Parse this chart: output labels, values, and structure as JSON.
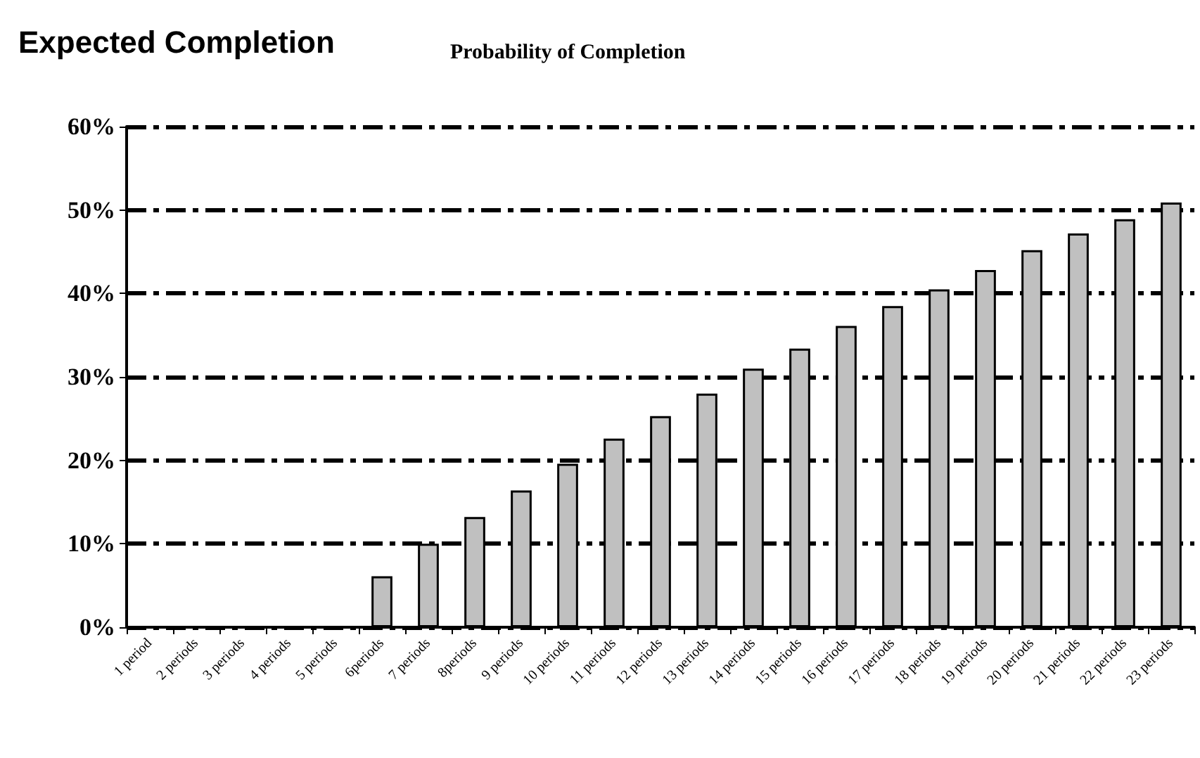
{
  "chart_data": {
    "type": "bar",
    "title": "Expected Completion",
    "subtitle": "Probability of Completion",
    "categories": [
      "1 period",
      "2 periods",
      "3 periods",
      "4 periods",
      "5 periods",
      "6periods",
      "7 periods",
      "8periods",
      "9 periods",
      "10 periods",
      "11 periods",
      "12 periods",
      "13 periods",
      "14 periods",
      "15 periods",
      "16 periods",
      "17 periods",
      "18 periods",
      "19 periods",
      "20 periods",
      "21 periods",
      "22 periods",
      "23 periods"
    ],
    "values": [
      null,
      null,
      null,
      null,
      null,
      6.1,
      10,
      13.2,
      16.4,
      19.6,
      22.6,
      25.3,
      28.0,
      31.0,
      33.4,
      36.1,
      38.5,
      40.5,
      42.8,
      45.2,
      47.2,
      48.9,
      50.9
    ],
    "color": "#c0c0c0",
    "ylim": [
      0,
      60
    ],
    "yticks": [
      {
        "value": 0,
        "label": "0%"
      },
      {
        "value": 10,
        "label": "10%"
      },
      {
        "value": 20,
        "label": "20%"
      },
      {
        "value": 30,
        "label": "30%"
      },
      {
        "value": 40,
        "label": "40%"
      },
      {
        "value": 50,
        "label": "50%"
      },
      {
        "value": 60,
        "label": "60%"
      }
    ],
    "grid": "y"
  }
}
